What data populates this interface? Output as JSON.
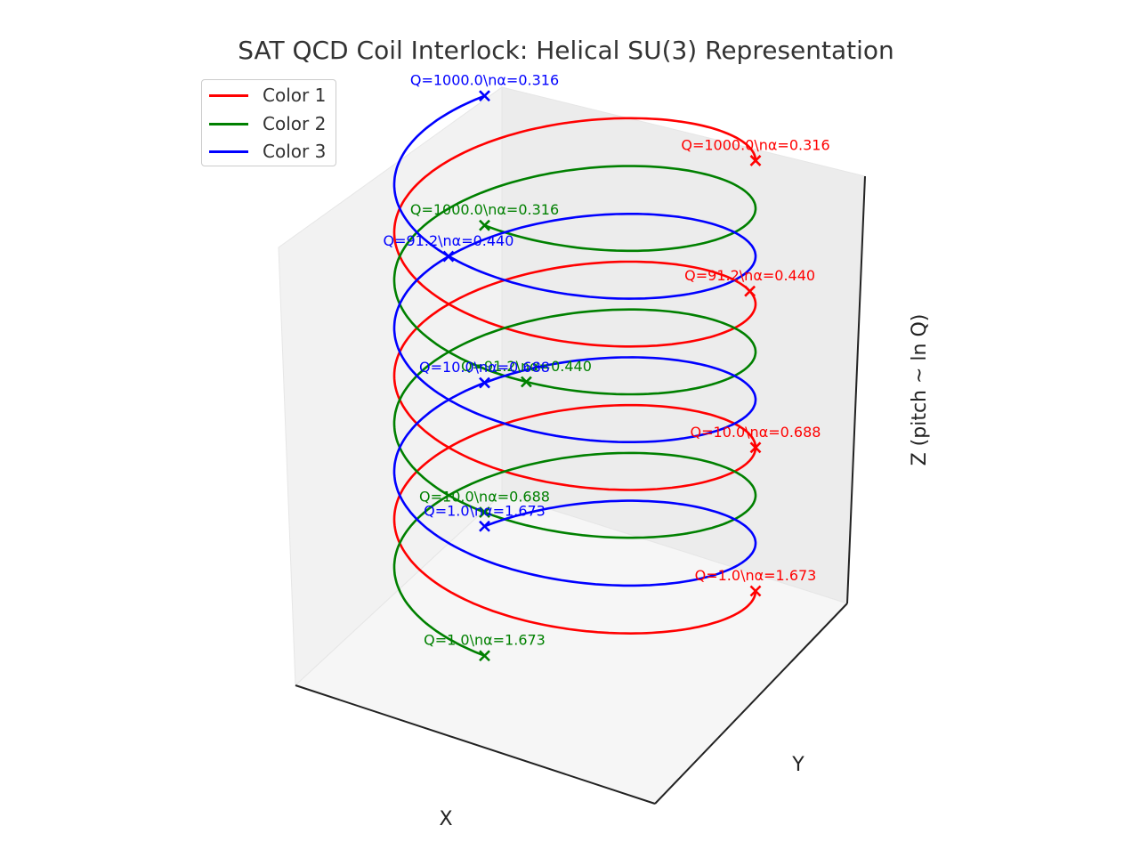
{
  "chart_data": {
    "type": "line",
    "title": "SAT QCD Coil Interlock: Helical SU(3) Representation",
    "xlabel": "X",
    "ylabel": "Y",
    "zlabel": "Z (pitch ~ ln Q)",
    "grid": false,
    "legend_position": "top-left",
    "series": [
      {
        "name": "Color 1",
        "color": "#ff0000",
        "phase_deg": 0,
        "markers": [
          {
            "Q": 1.0,
            "alpha": 1.673,
            "label": "Q=1.0\\nα=1.673"
          },
          {
            "Q": 10.0,
            "alpha": 0.688,
            "label": "Q=10.0\\nα=0.688"
          },
          {
            "Q": 91.2,
            "alpha": 0.44,
            "label": "Q=91.2\\nα=0.440"
          },
          {
            "Q": 1000.0,
            "alpha": 0.316,
            "label": "Q=1000.0\\nα=0.316"
          }
        ]
      },
      {
        "name": "Color 2",
        "color": "#008000",
        "phase_deg": 120,
        "markers": [
          {
            "Q": 1.0,
            "alpha": 1.673,
            "label": "Q=1.0\\nα=1.673"
          },
          {
            "Q": 10.0,
            "alpha": 0.688,
            "label": "Q=10.0\\nα=0.688"
          },
          {
            "Q": 91.2,
            "alpha": 0.44,
            "label": "Q=91.2\\nα=0.440"
          },
          {
            "Q": 1000.0,
            "alpha": 0.316,
            "label": "Q=1000.0\\nα=0.316"
          }
        ]
      },
      {
        "name": "Color 3",
        "color": "#0000ff",
        "phase_deg": 240,
        "markers": [
          {
            "Q": 1.0,
            "alpha": 1.673,
            "label": "Q=1.0\\nα=1.673"
          },
          {
            "Q": 10.0,
            "alpha": 0.688,
            "label": "Q=10.0\\nα=0.688"
          },
          {
            "Q": 91.2,
            "alpha": 0.44,
            "label": "Q=91.2\\nα=0.440"
          },
          {
            "Q": 1000.0,
            "alpha": 0.316,
            "label": "Q=1000.0\\nα=0.316"
          }
        ]
      }
    ]
  }
}
